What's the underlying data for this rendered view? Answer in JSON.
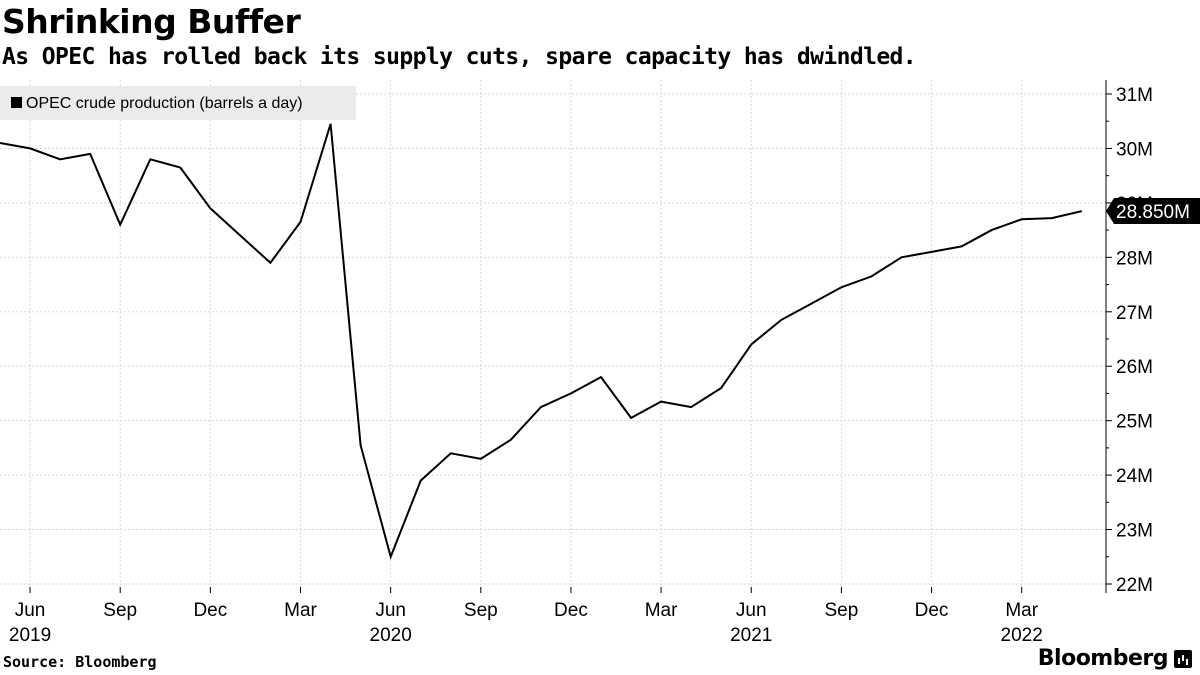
{
  "header": {
    "title": "Shrinking Buffer",
    "subtitle": "As OPEC has rolled back its supply cuts, spare capacity has dwindled."
  },
  "footer": {
    "source": "Source: Bloomberg",
    "brand": "Bloomberg",
    "brand_icon": "bloomberg-terminal-icon"
  },
  "colors": {
    "line": "#000000",
    "grid": "#d9d9d9",
    "legend_bg": "#ebebeb",
    "last_label_bg": "#000000",
    "last_label_text": "#ffffff"
  },
  "chart_data": {
    "type": "line",
    "title": "Shrinking Buffer",
    "subtitle": "As OPEC has rolled back its supply cuts, spare capacity has dwindled.",
    "legend": {
      "label": "OPEC crude production (barrels a day)",
      "position": "top-left"
    },
    "y_axis": {
      "position": "right",
      "ylim": [
        22,
        31
      ],
      "ticks": [
        22,
        23,
        24,
        25,
        26,
        27,
        28,
        29,
        30,
        31
      ],
      "tick_labels": [
        "22M",
        "23M",
        "24M",
        "25M",
        "26M",
        "27M",
        "28M",
        "29M",
        "30M",
        "31M"
      ],
      "unit": "million barrels a day"
    },
    "x_axis": {
      "months": [
        "Jun",
        "Sep",
        "Dec",
        "Mar",
        "Jun",
        "Sep",
        "Dec",
        "Mar",
        "Jun",
        "Sep",
        "Dec",
        "Mar"
      ],
      "month_ticks": [
        "2019-06",
        "2019-09",
        "2019-12",
        "2020-03",
        "2020-06",
        "2020-09",
        "2020-12",
        "2021-03",
        "2021-06",
        "2021-09",
        "2021-12",
        "2022-03"
      ],
      "years": [
        "2019",
        "2020",
        "2021",
        "2022"
      ],
      "year_ticks": [
        "2019-06",
        "2020-06",
        "2021-06",
        "2022-03"
      ],
      "range": [
        "2019-05",
        "2022-05"
      ]
    },
    "grid": true,
    "last_value_label": "28.850M",
    "series": [
      {
        "name": "OPEC crude production (barrels a day)",
        "x": [
          "2019-05",
          "2019-06",
          "2019-07",
          "2019-08",
          "2019-09",
          "2019-10",
          "2019-11",
          "2019-12",
          "2020-01",
          "2020-02",
          "2020-03",
          "2020-04",
          "2020-05",
          "2020-06",
          "2020-07",
          "2020-08",
          "2020-09",
          "2020-10",
          "2020-11",
          "2020-12",
          "2021-01",
          "2021-02",
          "2021-03",
          "2021-04",
          "2021-05",
          "2021-06",
          "2021-07",
          "2021-08",
          "2021-09",
          "2021-10",
          "2021-11",
          "2021-12",
          "2022-01",
          "2022-02",
          "2022-03",
          "2022-04",
          "2022-05"
        ],
        "values": [
          30.1,
          30.0,
          29.8,
          29.9,
          28.6,
          29.8,
          29.65,
          28.9,
          28.4,
          27.9,
          28.65,
          30.45,
          24.55,
          22.5,
          23.9,
          24.4,
          24.3,
          24.65,
          25.25,
          25.5,
          25.8,
          25.05,
          25.35,
          25.25,
          25.6,
          26.4,
          26.85,
          27.15,
          27.45,
          27.65,
          28.0,
          28.1,
          28.2,
          28.5,
          28.7,
          28.72,
          28.85
        ]
      }
    ]
  }
}
